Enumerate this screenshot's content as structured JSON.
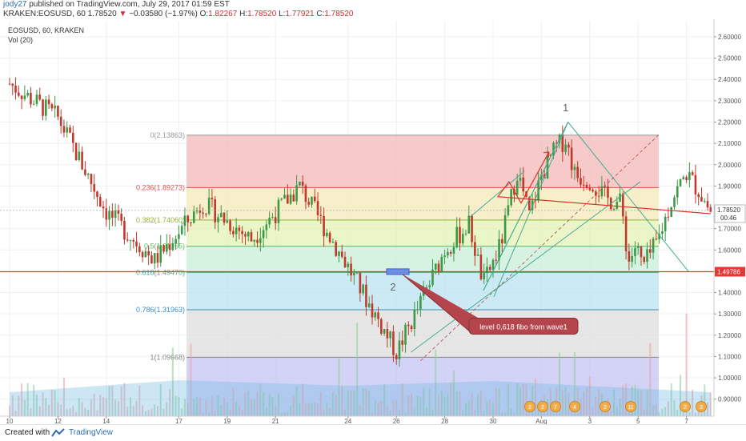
{
  "header": {
    "author": "jody27",
    "published": "published on TradingView.com, July 29, 2017 01:59 EST",
    "symbol_line": "KRAKEN:EOSUSD, 60",
    "last_price": "1.78520",
    "change_arrow": "▼",
    "change": "−0.03580 (−1.97%)",
    "o_label": "O:",
    "o_value": "1.82267",
    "h_label": "H:",
    "h_value": "1.78520",
    "l_label": "L:",
    "l_value": "1.77921",
    "c_label": "C:",
    "c_value": "1.78520"
  },
  "legend": {
    "title": "EOSUSD, 60, KRAKEN",
    "volume": "Vol (20)"
  },
  "footer": {
    "created_with": "Created with",
    "brand": "TradingView"
  },
  "colors": {
    "bull": "#3c9a47",
    "bear": "#c0392b",
    "support": "#e53935",
    "annotation_bg": "#b5454d",
    "trend": "#4aab93"
  },
  "chart_data": {
    "type": "candlestick",
    "timeframe": "60",
    "x_tick_labels": [
      "10",
      "12",
      "14",
      "17",
      "19",
      "21",
      "24",
      "26",
      "28",
      "30",
      "Aug",
      "3",
      "5",
      "7"
    ],
    "y_tick_labels": [
      "0.90000",
      "1.00000",
      "1.10000",
      "1.20000",
      "1.30000",
      "1.40000",
      "1.50000",
      "1.60000",
      "1.70000",
      "1.80000",
      "1.90000",
      "2.00000",
      "2.10000",
      "2.20000",
      "2.30000",
      "2.40000",
      "2.50000",
      "2.60000"
    ],
    "ylim": [
      0.82,
      2.66
    ],
    "price_anchors": [
      [
        0,
        2.38
      ],
      [
        2,
        2.22
      ],
      [
        4,
        1.78
      ],
      [
        6,
        1.55
      ],
      [
        8,
        1.82
      ],
      [
        10,
        1.65
      ],
      [
        12,
        1.9
      ],
      [
        14,
        1.52
      ],
      [
        16,
        1.12
      ],
      [
        17,
        1.35
      ],
      [
        18,
        1.6
      ],
      [
        19,
        1.72
      ],
      [
        19.6,
        1.44
      ],
      [
        20.3,
        1.62
      ],
      [
        21,
        1.97
      ],
      [
        21.5,
        1.76
      ],
      [
        22,
        1.95
      ],
      [
        22.6,
        2.08
      ],
      [
        23,
        2.12
      ],
      [
        23.4,
        1.95
      ],
      [
        24,
        1.93
      ],
      [
        24.7,
        1.84
      ],
      [
        25.3,
        1.82
      ],
      [
        25.6,
        1.54
      ],
      [
        25.9,
        1.62
      ],
      [
        26.2,
        1.52
      ],
      [
        26.8,
        1.64
      ],
      [
        27.4,
        1.84
      ],
      [
        28.0,
        1.96
      ],
      [
        28.5,
        1.88
      ],
      [
        29.0,
        1.78
      ]
    ],
    "last_price": "1.78520",
    "countdown": "00:46",
    "support_level": "1.49786",
    "fib_levels": [
      {
        "label": "0(2.13863)",
        "value": 2.13863,
        "fill": "#f4b8b8"
      },
      {
        "label": "0.236(1.89273)",
        "value": 1.89273,
        "fill": "#f3e9b8"
      },
      {
        "label": "0.382(1.74060)",
        "value": 1.7406,
        "fill": "#e3f2b6"
      },
      {
        "label": "0.5(1.61765)",
        "value": 1.61765,
        "fill": "#c8efd8"
      },
      {
        "label": "0.618(1.49470)",
        "value": 1.4947,
        "fill": "#b9e3f0"
      },
      {
        "label": "0.786(1.31963)",
        "value": 1.31963,
        "fill": "#dedede"
      },
      {
        "label": "1(1.09668)",
        "value": 1.09668,
        "fill": "#c4c4f4"
      }
    ],
    "wave_labels": [
      "1",
      "2"
    ],
    "annotation": "level 0,618 fibo from wave1",
    "event_badges": [
      "2",
      "2",
      "7",
      "4",
      "2",
      "11",
      "2",
      "3"
    ]
  }
}
